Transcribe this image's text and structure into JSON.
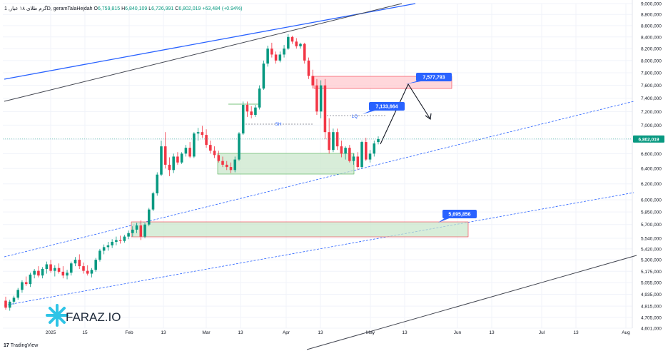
{
  "header": {
    "symbol": "گرم طلای ۱۸ عیار, 1D, geramTalaHejdah",
    "open_label": "O",
    "open": "6,759,815",
    "high_label": "H",
    "high": "6,840,109",
    "low_label": "L",
    "low": "6,726,991",
    "close_label": "C",
    "close": "6,802,019",
    "change": "+63,484 (+0.94%)"
  },
  "footer": {
    "brand": "TradingView",
    "logo_text": "FARAZ.IO"
  },
  "colors": {
    "up": "#089981",
    "down": "#f23645",
    "grid": "#f0f3fa",
    "price_tag": "#089981",
    "callout": "#2962ff",
    "trend_blue": "#2962ff",
    "trend_black": "#434651",
    "channel": "#2962ff",
    "green_zone": "#c8e6c9",
    "red_zone": "#ffcdd2"
  },
  "chart_data": {
    "type": "candlestick",
    "y_ticks": [
      "9,000,000",
      "8,800,000",
      "8,600,000",
      "8,400,000",
      "8,200,000",
      "8,000,000",
      "7,800,000",
      "7,600,000",
      "7,400,000",
      "7,200,000",
      "7,000,000",
      "6,800,000",
      "6,600,000",
      "6,400,000",
      "6,200,000",
      "6,000,000",
      "5,850,000",
      "5,700,000",
      "5,540,000",
      "5,420,000",
      "5,300,000",
      "5,175,000",
      "5,055,000",
      "4,935,000",
      "4,815,000",
      "4,705,000",
      "4,601,000"
    ],
    "x_ticks": [
      "2025",
      "15",
      "Feb",
      "13",
      "Mar",
      "13",
      "Apr",
      "13",
      "May",
      "13",
      "Jun",
      "13",
      "Jul",
      "13",
      "Aug"
    ],
    "last_price": "6,802,019",
    "ylim": [
      4601000,
      9000000
    ],
    "scale": "log",
    "annotations": {
      "sh": "SH",
      "lq": "LQ",
      "target_1": "7,577,793",
      "target_2": "7,133,664",
      "target_3": "5,695,856"
    },
    "candles": [
      [
        4870000,
        4910000,
        4780000,
        4800000
      ],
      [
        4800000,
        4880000,
        4770000,
        4860000
      ],
      [
        4860000,
        4920000,
        4830000,
        4900000
      ],
      [
        4900000,
        5000000,
        4880000,
        4980000
      ],
      [
        4980000,
        5080000,
        4950000,
        5060000
      ],
      [
        5060000,
        5120000,
        5020000,
        5040000
      ],
      [
        5040000,
        5160000,
        5010000,
        5140000
      ],
      [
        5140000,
        5200000,
        5100000,
        5180000
      ],
      [
        5180000,
        5230000,
        5110000,
        5130000
      ],
      [
        5130000,
        5220000,
        5100000,
        5200000
      ],
      [
        5200000,
        5280000,
        5150000,
        5250000
      ],
      [
        5250000,
        5300000,
        5160000,
        5180000
      ],
      [
        5180000,
        5240000,
        5120000,
        5210000
      ],
      [
        5210000,
        5260000,
        5150000,
        5170000
      ],
      [
        5170000,
        5230000,
        5100000,
        5130000
      ],
      [
        5130000,
        5190000,
        5090000,
        5160000
      ],
      [
        5160000,
        5280000,
        5130000,
        5260000
      ],
      [
        5260000,
        5330000,
        5230000,
        5300000
      ],
      [
        5300000,
        5360000,
        5200000,
        5230000
      ],
      [
        5230000,
        5270000,
        5150000,
        5180000
      ],
      [
        5180000,
        5240000,
        5130000,
        5150000
      ],
      [
        5150000,
        5210000,
        5110000,
        5190000
      ],
      [
        5190000,
        5320000,
        5170000,
        5300000
      ],
      [
        5300000,
        5420000,
        5280000,
        5400000
      ],
      [
        5400000,
        5470000,
        5360000,
        5440000
      ],
      [
        5440000,
        5500000,
        5400000,
        5460000
      ],
      [
        5460000,
        5530000,
        5430000,
        5500000
      ],
      [
        5500000,
        5560000,
        5460000,
        5520000
      ],
      [
        5520000,
        5570000,
        5480000,
        5510000
      ],
      [
        5510000,
        5580000,
        5490000,
        5560000
      ],
      [
        5560000,
        5630000,
        5530000,
        5600000
      ],
      [
        5600000,
        5680000,
        5560000,
        5640000
      ],
      [
        5640000,
        5720000,
        5600000,
        5690000
      ],
      [
        5690000,
        5750000,
        5520000,
        5560000
      ],
      [
        5560000,
        5720000,
        5540000,
        5700000
      ],
      [
        5700000,
        5900000,
        5680000,
        5880000
      ],
      [
        5880000,
        6100000,
        5860000,
        6080000
      ],
      [
        6080000,
        6350000,
        6050000,
        6320000
      ],
      [
        6320000,
        6780000,
        6300000,
        6700000
      ],
      [
        6700000,
        6900000,
        6400000,
        6450000
      ],
      [
        6450000,
        6550000,
        6300000,
        6380000
      ],
      [
        6380000,
        6600000,
        6340000,
        6560000
      ],
      [
        6560000,
        6620000,
        6450000,
        6480000
      ],
      [
        6480000,
        6620000,
        6460000,
        6600000
      ],
      [
        6600000,
        6720000,
        6560000,
        6680000
      ],
      [
        6680000,
        6760000,
        6540000,
        6560000
      ],
      [
        6560000,
        6900000,
        6540000,
        6880000
      ],
      [
        6880000,
        6960000,
        6780000,
        6900000
      ],
      [
        6900000,
        6990000,
        6820000,
        6860000
      ],
      [
        6860000,
        6940000,
        6680000,
        6720000
      ],
      [
        6720000,
        6780000,
        6600000,
        6640000
      ],
      [
        6640000,
        6700000,
        6540000,
        6580000
      ],
      [
        6580000,
        6640000,
        6480000,
        6500000
      ],
      [
        6500000,
        6560000,
        6420000,
        6450000
      ],
      [
        6450000,
        6500000,
        6380000,
        6420000
      ],
      [
        6420000,
        6480000,
        6340000,
        6380000
      ],
      [
        6380000,
        6560000,
        6350000,
        6520000
      ],
      [
        6520000,
        6900000,
        6500000,
        6880000
      ],
      [
        6880000,
        7350000,
        6860000,
        7300000
      ],
      [
        7300000,
        7350000,
        7120000,
        7200000
      ],
      [
        7200000,
        7280000,
        7100000,
        7150000
      ],
      [
        7150000,
        7300000,
        7120000,
        7260000
      ],
      [
        7260000,
        7600000,
        7230000,
        7550000
      ],
      [
        7550000,
        8000000,
        7530000,
        7950000
      ],
      [
        7950000,
        8250000,
        7900000,
        8200000
      ],
      [
        8200000,
        8300000,
        8050000,
        8100000
      ],
      [
        8100000,
        8150000,
        7950000,
        8000000
      ],
      [
        8000000,
        8150000,
        7970000,
        8100000
      ],
      [
        8100000,
        8260000,
        8050000,
        8200000
      ],
      [
        8200000,
        8450000,
        8180000,
        8400000
      ],
      [
        8400000,
        8420000,
        8280000,
        8320000
      ],
      [
        8320000,
        8380000,
        8200000,
        8240000
      ],
      [
        8240000,
        8300000,
        8200000,
        8280000
      ],
      [
        8280000,
        8300000,
        7950000,
        8000000
      ],
      [
        8000000,
        8050000,
        7700000,
        7750000
      ],
      [
        7750000,
        7850000,
        7550000,
        7600000
      ],
      [
        7600000,
        7700000,
        7150000,
        7200000
      ],
      [
        7200000,
        7680000,
        7100000,
        7600000
      ],
      [
        7600000,
        7700000,
        6800000,
        6900000
      ],
      [
        6900000,
        7100000,
        6600000,
        6650000
      ],
      [
        6650000,
        6950000,
        6620000,
        6900000
      ],
      [
        6900000,
        6950000,
        6650000,
        6700000
      ],
      [
        6700000,
        6780000,
        6550000,
        6600000
      ],
      [
        6600000,
        6700000,
        6520000,
        6680000
      ],
      [
        6680000,
        6720000,
        6480000,
        6500000
      ],
      [
        6500000,
        6600000,
        6450000,
        6560000
      ],
      [
        6560000,
        6620000,
        6380000,
        6420000
      ],
      [
        6420000,
        6780000,
        6400000,
        6760000
      ],
      [
        6760000,
        6820000,
        6500000,
        6520000
      ],
      [
        6520000,
        6650000,
        6480000,
        6600000
      ],
      [
        6600000,
        6780000,
        6560000,
        6740000
      ],
      [
        6759815,
        6840109,
        6726991,
        6802019
      ]
    ]
  }
}
